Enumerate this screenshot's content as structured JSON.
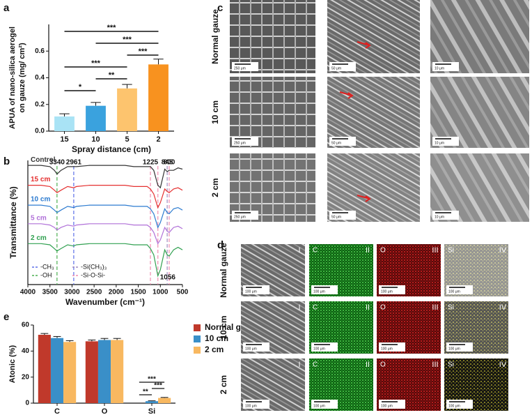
{
  "chart_data": [
    {
      "type": "bar",
      "panel": "a",
      "ylabel": [
        "APUA of nano-silica aerogel",
        "on gauze (mg/ cm²)"
      ],
      "xlabel": "Spray distance (cm)",
      "categories": [
        "15",
        "10",
        "5",
        "2"
      ],
      "values": [
        0.11,
        0.19,
        0.32,
        0.5
      ],
      "errors": [
        0.02,
        0.025,
        0.03,
        0.04
      ],
      "colors": [
        "#a9e3f5",
        "#3aa2de",
        "#fdc46e",
        "#f8921f"
      ],
      "ylim": [
        0,
        0.8
      ],
      "yticks": [
        {
          "value": 0,
          "label": "0.0"
        },
        0.2,
        0.4,
        0.6
      ],
      "significance": [
        {
          "from": "15",
          "to": "2",
          "label": "***"
        },
        {
          "from": "10",
          "to": "2",
          "label": "***"
        },
        {
          "from": "5",
          "to": "2",
          "label": "***"
        },
        {
          "from": "15",
          "to": "5",
          "label": "***"
        },
        {
          "from": "10",
          "to": "5",
          "label": "**"
        },
        {
          "from": "15",
          "to": "10",
          "label": "*"
        }
      ]
    },
    {
      "type": "line",
      "panel": "b",
      "ylabel": "Transmittance (%)",
      "xlabel": "Wavenumber (cm⁻¹)",
      "x": [
        4000,
        3700,
        3500,
        3400,
        3340,
        3250,
        3100,
        2961,
        2900,
        2600,
        2200,
        1800,
        1600,
        1400,
        1300,
        1225,
        1150,
        1056,
        1000,
        900,
        845,
        800,
        700,
        600,
        500
      ],
      "xlim": [
        4000,
        500
      ],
      "xticks": [
        4000,
        3500,
        3000,
        2500,
        2000,
        1500,
        1000,
        500
      ],
      "ylim": [
        0,
        100
      ],
      "series": [
        {
          "name": "Control",
          "color": "#333333",
          "values": [
            96,
            96,
            95,
            92,
            89,
            92,
            95,
            95,
            95,
            96,
            96,
            96,
            95,
            95,
            95,
            95,
            92,
            80,
            78,
            93,
            91,
            92,
            92,
            94,
            93
          ]
        },
        {
          "name": "15 cm",
          "color": "#e53030",
          "values": [
            80,
            80,
            79,
            76,
            74,
            76,
            79,
            78,
            79,
            80,
            80,
            80,
            79,
            79,
            79,
            77,
            73,
            62,
            66,
            77,
            75,
            74,
            77,
            78,
            76
          ]
        },
        {
          "name": "10 cm",
          "color": "#2c7bd0",
          "values": [
            64,
            64,
            63,
            60,
            58,
            60,
            63,
            62,
            63,
            64,
            64,
            64,
            63,
            63,
            63,
            61,
            57,
            46,
            50,
            61,
            58,
            57,
            61,
            62,
            60
          ]
        },
        {
          "name": "5 cm",
          "color": "#b070d8",
          "values": [
            49,
            49,
            48,
            46,
            44,
            46,
            48,
            47,
            48,
            49,
            49,
            49,
            48,
            48,
            48,
            46,
            42,
            33,
            36,
            46,
            43,
            42,
            46,
            47,
            45
          ]
        },
        {
          "name": "2 cm",
          "color": "#30a050",
          "values": [
            33,
            33,
            32,
            29,
            27,
            29,
            32,
            31,
            32,
            33,
            33,
            33,
            32,
            32,
            32,
            29,
            24,
            7,
            12,
            28,
            24,
            23,
            28,
            30,
            28
          ]
        }
      ],
      "annotations": [
        {
          "x": 3340,
          "color": "#4caf50",
          "label_position": "top"
        },
        {
          "x": 2961,
          "color": "#5b6ee8",
          "label_position": "top"
        },
        {
          "x": 1225,
          "color": "#f08cb0",
          "label_position": "top"
        },
        {
          "x": 845,
          "color": "#a08cc0",
          "label_position": "top"
        },
        {
          "x": 800,
          "color": "#f08cb0",
          "label_position": "top"
        },
        {
          "x": 1056,
          "color": "#f08cb0",
          "label_position": "bottom"
        }
      ],
      "legend": [
        {
          "name": "-CH₃",
          "color": "#5b6ee8"
        },
        {
          "name": "-OH",
          "color": "#4caf50"
        },
        {
          "name": "-Si(CH₃)₃",
          "color": "#a08cc0"
        },
        {
          "name": "-Si-O-Si-",
          "color": "#f08cb0"
        }
      ]
    },
    {
      "type": "bar",
      "panel": "e",
      "ylabel": "Atonic (%)",
      "categories": [
        "C",
        "O",
        "Si"
      ],
      "series": [
        {
          "name": "Normal gauze",
          "color": "#c0392b",
          "values": [
            52.5,
            47.5,
            0
          ],
          "errors": [
            1,
            1,
            0
          ]
        },
        {
          "name": "10 cm",
          "color": "#3a8fc8",
          "values": [
            50,
            48.5,
            1.5
          ],
          "errors": [
            1.2,
            1.2,
            0.3
          ]
        },
        {
          "name": "2 cm",
          "color": "#f8b860",
          "values": [
            47,
            48.5,
            4
          ],
          "errors": [
            1,
            1.2,
            0.4
          ]
        }
      ],
      "ylim": [
        0,
        60
      ],
      "yticks": [
        0,
        20,
        40,
        60
      ],
      "significance": [
        {
          "category": "Si",
          "from": "Normal gauze",
          "to": "10 cm",
          "label": "**"
        },
        {
          "category": "Si",
          "from": "10 cm",
          "to": "2 cm",
          "label": "***"
        },
        {
          "category": "Si",
          "from": "Normal gauze",
          "to": "2 cm",
          "label": "***"
        }
      ]
    }
  ],
  "sem": {
    "panel": "c",
    "rows": [
      "Normal gauze",
      "10 cm",
      "2 cm"
    ],
    "scale_bars": [
      "250 μm",
      "50 μm",
      "10 μm"
    ]
  },
  "eds": {
    "panel": "d",
    "rows": [
      "Normal gauze",
      "10 cm",
      "2 cm"
    ],
    "elements": [
      "C",
      "O",
      "Si"
    ],
    "numerals": [
      "I",
      "II",
      "III",
      "IV"
    ],
    "scale_bar": "100 μm"
  }
}
